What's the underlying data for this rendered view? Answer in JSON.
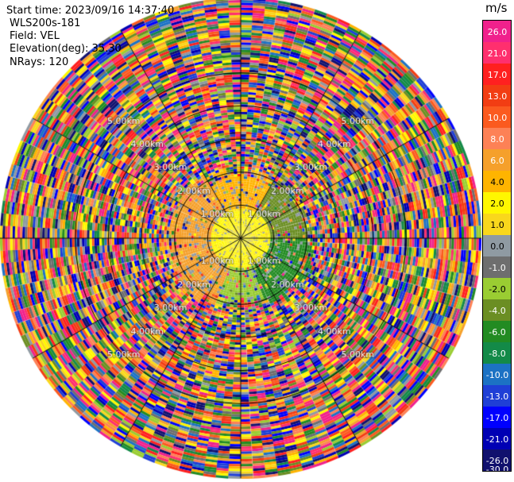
{
  "header": {
    "start_time": "Start time: 2023/09/16 14:37:40",
    "instrument": "WLS200s-181",
    "field": "Field: VEL",
    "elevation": "Elevation(deg): 35.30",
    "nrays": "NRays: 120"
  },
  "colorbar": {
    "unit": "m/s",
    "ticks": [
      "26.0",
      "21.0",
      "17.0",
      "13.0",
      "10.0",
      "8.0",
      "6.0",
      "4.0",
      "2.0",
      "1.0",
      "0.0",
      "-1.0",
      "-2.0",
      "-4.0",
      "-6.0",
      "-8.0",
      "-10.0",
      "-13.0",
      "-17.0",
      "-21.0",
      "-26.0",
      "-30.0"
    ],
    "colors": [
      "#f0218c",
      "#ff2f6e",
      "#ff2020",
      "#f23d13",
      "#fb5a1f",
      "#fd8156",
      "#f5a02b",
      "#ffb400",
      "#fff700",
      "#f9d71c",
      "#8f9aa2",
      "#6e6e6e",
      "#9acd32",
      "#6b8e23",
      "#228b22",
      "#138a48",
      "#1c72c4",
      "#1f3fd6",
      "#0000ff",
      "#0000b4",
      "#11116e"
    ]
  },
  "chart_data": {
    "type": "heatmap",
    "subtype": "radar PPI",
    "field": "VEL",
    "units": "m/s",
    "nrays": 120,
    "elevation_deg": 35.3,
    "range_rings_km": [
      1.0,
      2.0,
      3.0,
      4.0,
      5.0
    ],
    "ring_labels": [
      "1.00km",
      "2.00km",
      "3.00km",
      "4.00km",
      "5.00km"
    ],
    "radial_lines_deg": [
      0,
      30,
      60,
      90,
      120,
      150,
      180,
      210,
      240,
      270,
      300,
      330
    ],
    "max_range_km": 7.25,
    "near_field_pattern": [
      {
        "az_from": 200,
        "az_to": 330,
        "max_km": 2.2,
        "color": "#f5a02b"
      },
      {
        "az_from": 330,
        "az_to": 30,
        "max_km": 2.0,
        "color": "#ffb400"
      },
      {
        "az_from": 30,
        "az_to": 90,
        "max_km": 2.1,
        "color": "#6b8e23"
      },
      {
        "az_from": 90,
        "az_to": 160,
        "max_km": 2.2,
        "color": "#228b22"
      },
      {
        "az_from": 160,
        "az_to": 200,
        "max_km": 2.0,
        "color": "#9acd32"
      }
    ],
    "inner_core": {
      "max_km": 0.9,
      "colors": [
        "#fff700",
        "#f9d71c",
        "#8f9aa2"
      ]
    },
    "far_field": "noise"
  }
}
